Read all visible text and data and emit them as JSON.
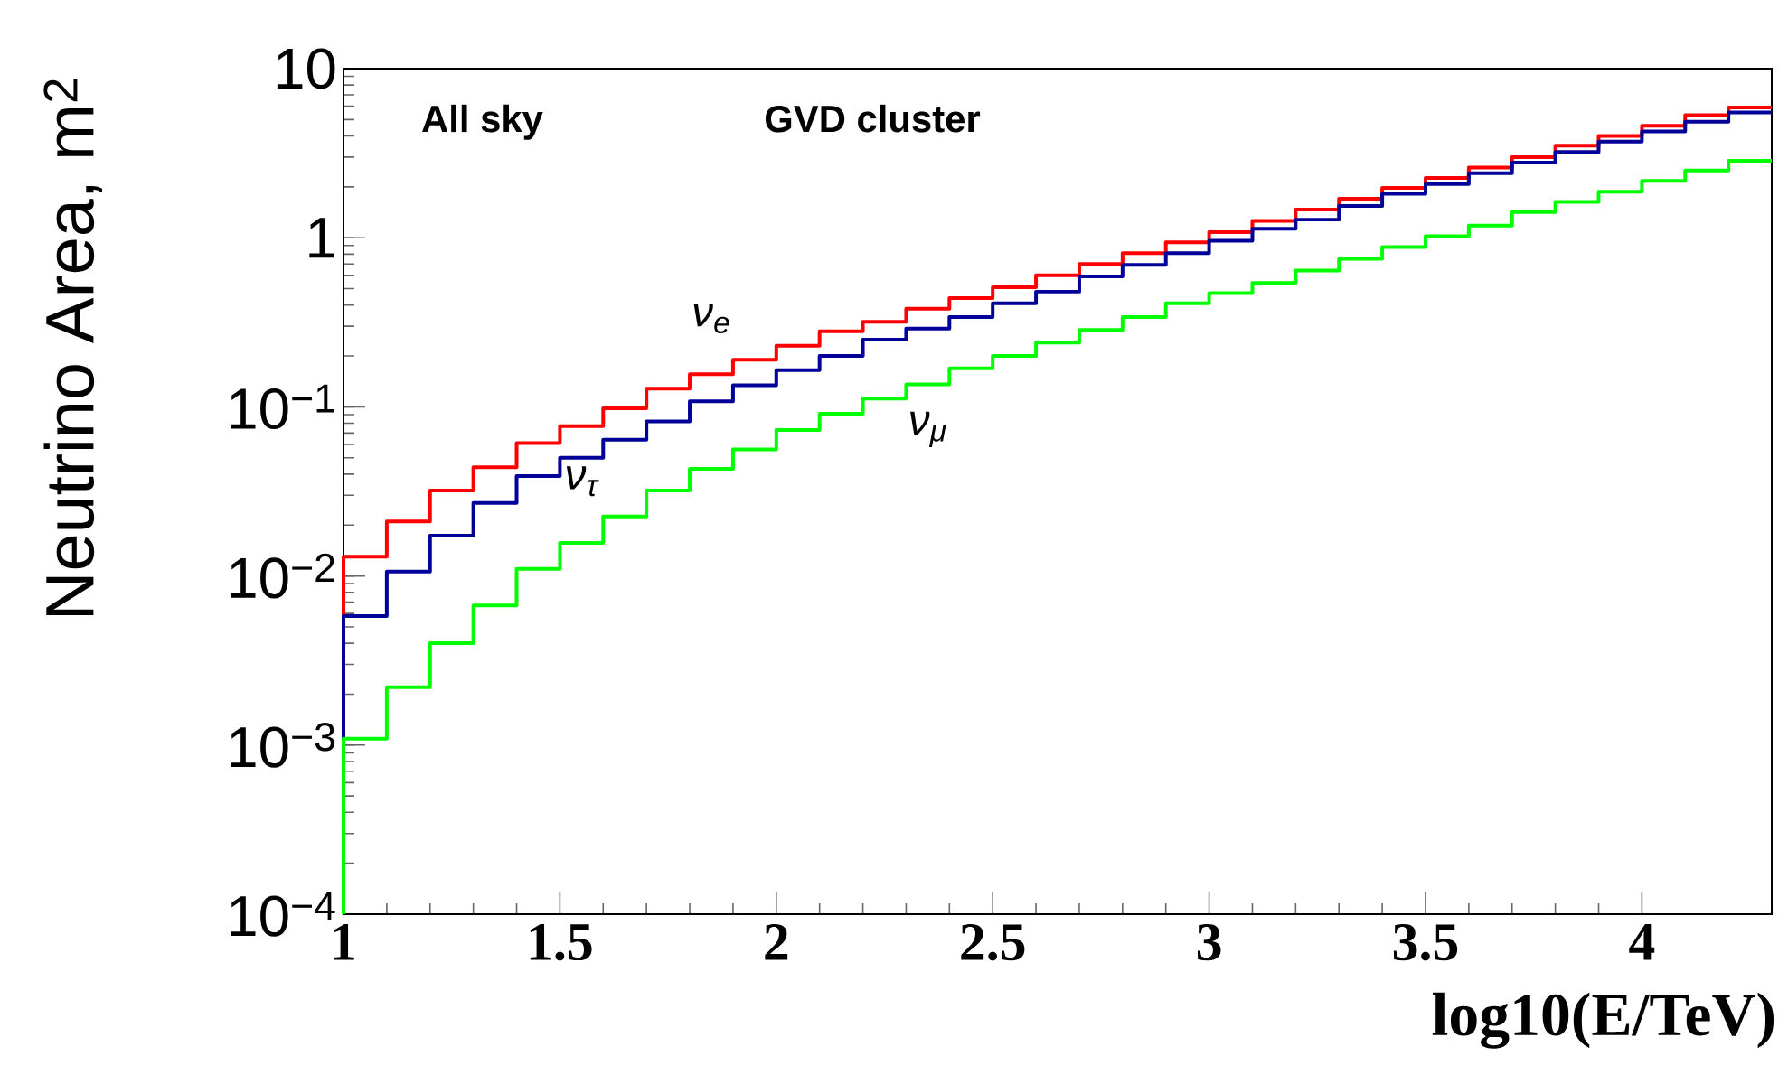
{
  "chart_data": {
    "type": "histogram",
    "xlabel": "log10(E/TeV)",
    "ylabel": "Neutrino Area, m$^{2}$",
    "annotations": [
      "All sky",
      "GVD cluster"
    ],
    "bins": [
      1.0,
      1.1,
      1.2,
      1.3,
      1.4,
      1.5,
      1.6,
      1.7,
      1.8,
      1.9,
      2.0,
      2.1,
      2.2,
      2.3,
      2.4,
      2.5,
      2.6,
      2.7,
      2.8,
      2.9,
      3.0,
      3.1,
      3.2,
      3.3,
      3.4,
      3.5,
      3.6,
      3.7,
      3.8,
      3.9,
      4.0,
      4.1,
      4.2,
      4.3
    ],
    "series": [
      {
        "name": "ν$_{e}$",
        "color": "#ff0000",
        "values": [
          0.013,
          0.021,
          0.032,
          0.044,
          0.061,
          0.077,
          0.098,
          0.128,
          0.156,
          0.19,
          0.23,
          0.28,
          0.318,
          0.38,
          0.44,
          0.51,
          0.6,
          0.7,
          0.81,
          0.94,
          1.08,
          1.26,
          1.47,
          1.7,
          1.97,
          2.26,
          2.6,
          3.0,
          3.5,
          4.0,
          4.6,
          5.3,
          5.9
        ]
      },
      {
        "name": "ν$_{τ}$",
        "color": "#000099",
        "values": [
          0.0058,
          0.0106,
          0.0173,
          0.027,
          0.039,
          0.05,
          0.064,
          0.082,
          0.108,
          0.134,
          0.165,
          0.2,
          0.25,
          0.29,
          0.34,
          0.41,
          0.48,
          0.59,
          0.69,
          0.81,
          0.96,
          1.13,
          1.28,
          1.54,
          1.82,
          2.08,
          2.41,
          2.78,
          3.22,
          3.7,
          4.25,
          4.85,
          5.5
        ]
      },
      {
        "name": "ν$_{μ}$",
        "color": "#00ff00",
        "values": [
          0.00109,
          0.0022,
          0.004,
          0.0067,
          0.011,
          0.0157,
          0.0225,
          0.032,
          0.043,
          0.056,
          0.073,
          0.091,
          0.112,
          0.136,
          0.169,
          0.2,
          0.24,
          0.285,
          0.34,
          0.41,
          0.47,
          0.54,
          0.64,
          0.75,
          0.88,
          1.02,
          1.18,
          1.42,
          1.63,
          1.87,
          2.17,
          2.5,
          2.85
        ]
      }
    ],
    "xlim": [
      1,
      4.3
    ],
    "ylim": [
      0.0001,
      10
    ],
    "xticks": [
      1,
      1.5,
      2,
      2.5,
      3,
      3.5,
      4
    ],
    "yticks": [
      {
        "value": 0.0001,
        "label": "10$^{−4}$"
      },
      {
        "value": 0.001,
        "label": "10$^{−3}$"
      },
      {
        "value": 0.01,
        "label": "10$^{−2}$"
      },
      {
        "value": 0.1,
        "label": "10$^{−1}$"
      },
      1,
      10
    ],
    "log": "y",
    "grid": false,
    "legend": false
  }
}
